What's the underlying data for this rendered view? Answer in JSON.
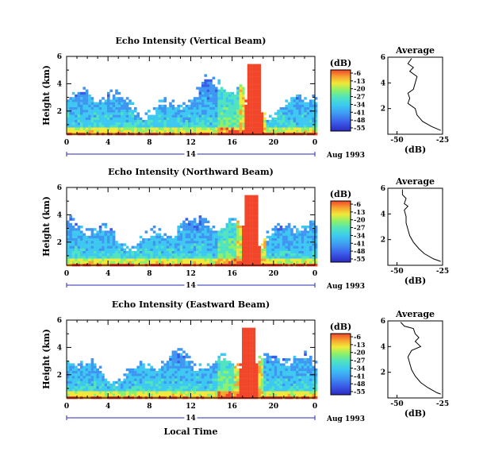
{
  "chart_data": [
    {
      "type": "heatmap",
      "title": "Echo Intensity (Vertical Beam)",
      "ylabel": "Height (km)",
      "xlabel": "",
      "x_ticks": [
        "0",
        "4",
        "8",
        "12",
        "16",
        "20",
        "0"
      ],
      "y_ticks": [
        "6",
        "4",
        "2"
      ],
      "xlim": [
        0,
        24
      ],
      "ylim": [
        0.3,
        6
      ],
      "date_day": "14",
      "date_month": "Aug 1993",
      "colorbar": {
        "label": "(dB)",
        "ticks": [
          "-6",
          "-13",
          "-20",
          "-27",
          "-34",
          "-41",
          "-48",
          "-55"
        ]
      },
      "average_profile": {
        "title": "Average",
        "xlabel": "(dB)",
        "x_ticks": [
          "-50",
          "-25"
        ],
        "y_ticks": [
          "6",
          "4",
          "2"
        ],
        "xlim": [
          -55,
          -25
        ],
        "ylim": [
          0,
          6
        ],
        "points": [
          [
            -42,
            5.9
          ],
          [
            -44,
            5.5
          ],
          [
            -41,
            5.2
          ],
          [
            -43,
            4.9
          ],
          [
            -39,
            4.5
          ],
          [
            -40,
            4.0
          ],
          [
            -41,
            3.5
          ],
          [
            -44,
            3.2
          ],
          [
            -43,
            2.8
          ],
          [
            -44,
            2.4
          ],
          [
            -40,
            2.0
          ],
          [
            -39,
            1.5
          ],
          [
            -36,
            1.0
          ],
          [
            -31,
            0.6
          ],
          [
            -26,
            0.3
          ]
        ]
      }
    },
    {
      "type": "heatmap",
      "title": "Echo Intensity (Northward Beam)",
      "ylabel": "Height (km)",
      "xlabel": "",
      "x_ticks": [
        "0",
        "4",
        "8",
        "12",
        "16",
        "20",
        "0"
      ],
      "y_ticks": [
        "6",
        "4",
        "2"
      ],
      "xlim": [
        0,
        24
      ],
      "ylim": [
        0.3,
        6
      ],
      "date_day": "14",
      "date_month": "Aug 1993",
      "colorbar": {
        "label": "(dB)",
        "ticks": [
          "-6",
          "-13",
          "-20",
          "-27",
          "-34",
          "-41",
          "-48",
          "-55"
        ]
      },
      "average_profile": {
        "title": "Average",
        "xlabel": "(dB)",
        "x_ticks": [
          "-50",
          "-25"
        ],
        "y_ticks": [
          "6",
          "4",
          "2"
        ],
        "xlim": [
          -55,
          -25
        ],
        "ylim": [
          0,
          6
        ],
        "points": [
          [
            -47,
            5.9
          ],
          [
            -47,
            5.5
          ],
          [
            -45,
            5.2
          ],
          [
            -46,
            4.8
          ],
          [
            -44,
            4.6
          ],
          [
            -46,
            4.3
          ],
          [
            -45,
            3.8
          ],
          [
            -45,
            3.3
          ],
          [
            -44,
            2.8
          ],
          [
            -43,
            2.3
          ],
          [
            -41,
            1.8
          ],
          [
            -38,
            1.3
          ],
          [
            -35,
            0.9
          ],
          [
            -30,
            0.5
          ],
          [
            -26,
            0.3
          ]
        ]
      }
    },
    {
      "type": "heatmap",
      "title": "Echo Intensity (Eastward Beam)",
      "ylabel": "Height (km)",
      "xlabel": "Local Time",
      "x_ticks": [
        "0",
        "4",
        "8",
        "12",
        "16",
        "20",
        "0"
      ],
      "y_ticks": [
        "6",
        "4",
        "2"
      ],
      "xlim": [
        0,
        24
      ],
      "ylim": [
        0.3,
        6
      ],
      "date_day": "14",
      "date_month": "Aug 1993",
      "colorbar": {
        "label": "(dB)",
        "ticks": [
          "-6",
          "-13",
          "-20",
          "-27",
          "-34",
          "-41",
          "-48",
          "-55"
        ]
      },
      "average_profile": {
        "title": "Average",
        "xlabel": "(dB)",
        "x_ticks": [
          "-50",
          "-25"
        ],
        "y_ticks": [
          "6",
          "4",
          "2"
        ],
        "xlim": [
          -55,
          -25
        ],
        "ylim": [
          0,
          6
        ],
        "points": [
          [
            -48,
            5.9
          ],
          [
            -46,
            5.6
          ],
          [
            -41,
            5.4
          ],
          [
            -40,
            5.0
          ],
          [
            -38,
            4.7
          ],
          [
            -40,
            4.4
          ],
          [
            -37,
            4.0
          ],
          [
            -42,
            3.7
          ],
          [
            -44,
            3.2
          ],
          [
            -43,
            2.7
          ],
          [
            -42,
            2.2
          ],
          [
            -40,
            1.7
          ],
          [
            -37,
            1.2
          ],
          [
            -33,
            0.8
          ],
          [
            -28,
            0.4
          ],
          [
            -26,
            0.3
          ]
        ]
      }
    }
  ],
  "colors": {
    "palette": [
      "#2b2bbf",
      "#3a5be8",
      "#3f96f2",
      "#3cc8f0",
      "#4fe3c0",
      "#8cf06a",
      "#f0e93a",
      "#f7a330",
      "#f2462a"
    ]
  }
}
